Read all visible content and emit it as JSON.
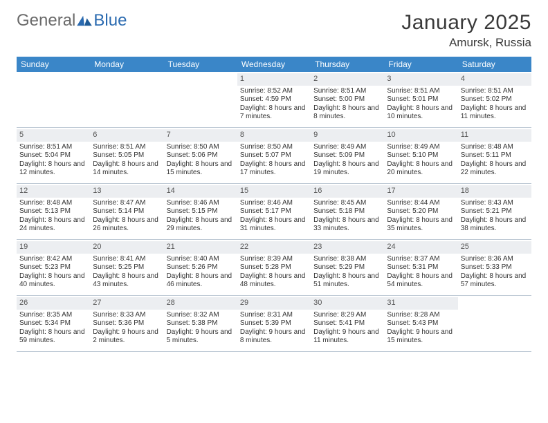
{
  "brand": {
    "word1": "General",
    "word2": "Blue"
  },
  "title": "January 2025",
  "location": "Amursk, Russia",
  "colors": {
    "header_bg": "#3a86c8",
    "header_text": "#ffffff",
    "daynum_bg": "#eceef1",
    "grid_border": "#bfcad6",
    "body_text": "#333333",
    "page_bg": "#ffffff",
    "brand_gray": "#6a6a6a",
    "brand_blue": "#2a6ab0"
  },
  "day_names": [
    "Sunday",
    "Monday",
    "Tuesday",
    "Wednesday",
    "Thursday",
    "Friday",
    "Saturday"
  ],
  "weeks": [
    [
      {
        "n": "",
        "sr": "",
        "ss": "",
        "dl": ""
      },
      {
        "n": "",
        "sr": "",
        "ss": "",
        "dl": ""
      },
      {
        "n": "",
        "sr": "",
        "ss": "",
        "dl": ""
      },
      {
        "n": "1",
        "sr": "Sunrise: 8:52 AM",
        "ss": "Sunset: 4:59 PM",
        "dl": "Daylight: 8 hours and 7 minutes."
      },
      {
        "n": "2",
        "sr": "Sunrise: 8:51 AM",
        "ss": "Sunset: 5:00 PM",
        "dl": "Daylight: 8 hours and 8 minutes."
      },
      {
        "n": "3",
        "sr": "Sunrise: 8:51 AM",
        "ss": "Sunset: 5:01 PM",
        "dl": "Daylight: 8 hours and 10 minutes."
      },
      {
        "n": "4",
        "sr": "Sunrise: 8:51 AM",
        "ss": "Sunset: 5:02 PM",
        "dl": "Daylight: 8 hours and 11 minutes."
      }
    ],
    [
      {
        "n": "5",
        "sr": "Sunrise: 8:51 AM",
        "ss": "Sunset: 5:04 PM",
        "dl": "Daylight: 8 hours and 12 minutes."
      },
      {
        "n": "6",
        "sr": "Sunrise: 8:51 AM",
        "ss": "Sunset: 5:05 PM",
        "dl": "Daylight: 8 hours and 14 minutes."
      },
      {
        "n": "7",
        "sr": "Sunrise: 8:50 AM",
        "ss": "Sunset: 5:06 PM",
        "dl": "Daylight: 8 hours and 15 minutes."
      },
      {
        "n": "8",
        "sr": "Sunrise: 8:50 AM",
        "ss": "Sunset: 5:07 PM",
        "dl": "Daylight: 8 hours and 17 minutes."
      },
      {
        "n": "9",
        "sr": "Sunrise: 8:49 AM",
        "ss": "Sunset: 5:09 PM",
        "dl": "Daylight: 8 hours and 19 minutes."
      },
      {
        "n": "10",
        "sr": "Sunrise: 8:49 AM",
        "ss": "Sunset: 5:10 PM",
        "dl": "Daylight: 8 hours and 20 minutes."
      },
      {
        "n": "11",
        "sr": "Sunrise: 8:48 AM",
        "ss": "Sunset: 5:11 PM",
        "dl": "Daylight: 8 hours and 22 minutes."
      }
    ],
    [
      {
        "n": "12",
        "sr": "Sunrise: 8:48 AM",
        "ss": "Sunset: 5:13 PM",
        "dl": "Daylight: 8 hours and 24 minutes."
      },
      {
        "n": "13",
        "sr": "Sunrise: 8:47 AM",
        "ss": "Sunset: 5:14 PM",
        "dl": "Daylight: 8 hours and 26 minutes."
      },
      {
        "n": "14",
        "sr": "Sunrise: 8:46 AM",
        "ss": "Sunset: 5:15 PM",
        "dl": "Daylight: 8 hours and 29 minutes."
      },
      {
        "n": "15",
        "sr": "Sunrise: 8:46 AM",
        "ss": "Sunset: 5:17 PM",
        "dl": "Daylight: 8 hours and 31 minutes."
      },
      {
        "n": "16",
        "sr": "Sunrise: 8:45 AM",
        "ss": "Sunset: 5:18 PM",
        "dl": "Daylight: 8 hours and 33 minutes."
      },
      {
        "n": "17",
        "sr": "Sunrise: 8:44 AM",
        "ss": "Sunset: 5:20 PM",
        "dl": "Daylight: 8 hours and 35 minutes."
      },
      {
        "n": "18",
        "sr": "Sunrise: 8:43 AM",
        "ss": "Sunset: 5:21 PM",
        "dl": "Daylight: 8 hours and 38 minutes."
      }
    ],
    [
      {
        "n": "19",
        "sr": "Sunrise: 8:42 AM",
        "ss": "Sunset: 5:23 PM",
        "dl": "Daylight: 8 hours and 40 minutes."
      },
      {
        "n": "20",
        "sr": "Sunrise: 8:41 AM",
        "ss": "Sunset: 5:25 PM",
        "dl": "Daylight: 8 hours and 43 minutes."
      },
      {
        "n": "21",
        "sr": "Sunrise: 8:40 AM",
        "ss": "Sunset: 5:26 PM",
        "dl": "Daylight: 8 hours and 46 minutes."
      },
      {
        "n": "22",
        "sr": "Sunrise: 8:39 AM",
        "ss": "Sunset: 5:28 PM",
        "dl": "Daylight: 8 hours and 48 minutes."
      },
      {
        "n": "23",
        "sr": "Sunrise: 8:38 AM",
        "ss": "Sunset: 5:29 PM",
        "dl": "Daylight: 8 hours and 51 minutes."
      },
      {
        "n": "24",
        "sr": "Sunrise: 8:37 AM",
        "ss": "Sunset: 5:31 PM",
        "dl": "Daylight: 8 hours and 54 minutes."
      },
      {
        "n": "25",
        "sr": "Sunrise: 8:36 AM",
        "ss": "Sunset: 5:33 PM",
        "dl": "Daylight: 8 hours and 57 minutes."
      }
    ],
    [
      {
        "n": "26",
        "sr": "Sunrise: 8:35 AM",
        "ss": "Sunset: 5:34 PM",
        "dl": "Daylight: 8 hours and 59 minutes."
      },
      {
        "n": "27",
        "sr": "Sunrise: 8:33 AM",
        "ss": "Sunset: 5:36 PM",
        "dl": "Daylight: 9 hours and 2 minutes."
      },
      {
        "n": "28",
        "sr": "Sunrise: 8:32 AM",
        "ss": "Sunset: 5:38 PM",
        "dl": "Daylight: 9 hours and 5 minutes."
      },
      {
        "n": "29",
        "sr": "Sunrise: 8:31 AM",
        "ss": "Sunset: 5:39 PM",
        "dl": "Daylight: 9 hours and 8 minutes."
      },
      {
        "n": "30",
        "sr": "Sunrise: 8:29 AM",
        "ss": "Sunset: 5:41 PM",
        "dl": "Daylight: 9 hours and 11 minutes."
      },
      {
        "n": "31",
        "sr": "Sunrise: 8:28 AM",
        "ss": "Sunset: 5:43 PM",
        "dl": "Daylight: 9 hours and 15 minutes."
      },
      {
        "n": "",
        "sr": "",
        "ss": "",
        "dl": ""
      }
    ]
  ]
}
